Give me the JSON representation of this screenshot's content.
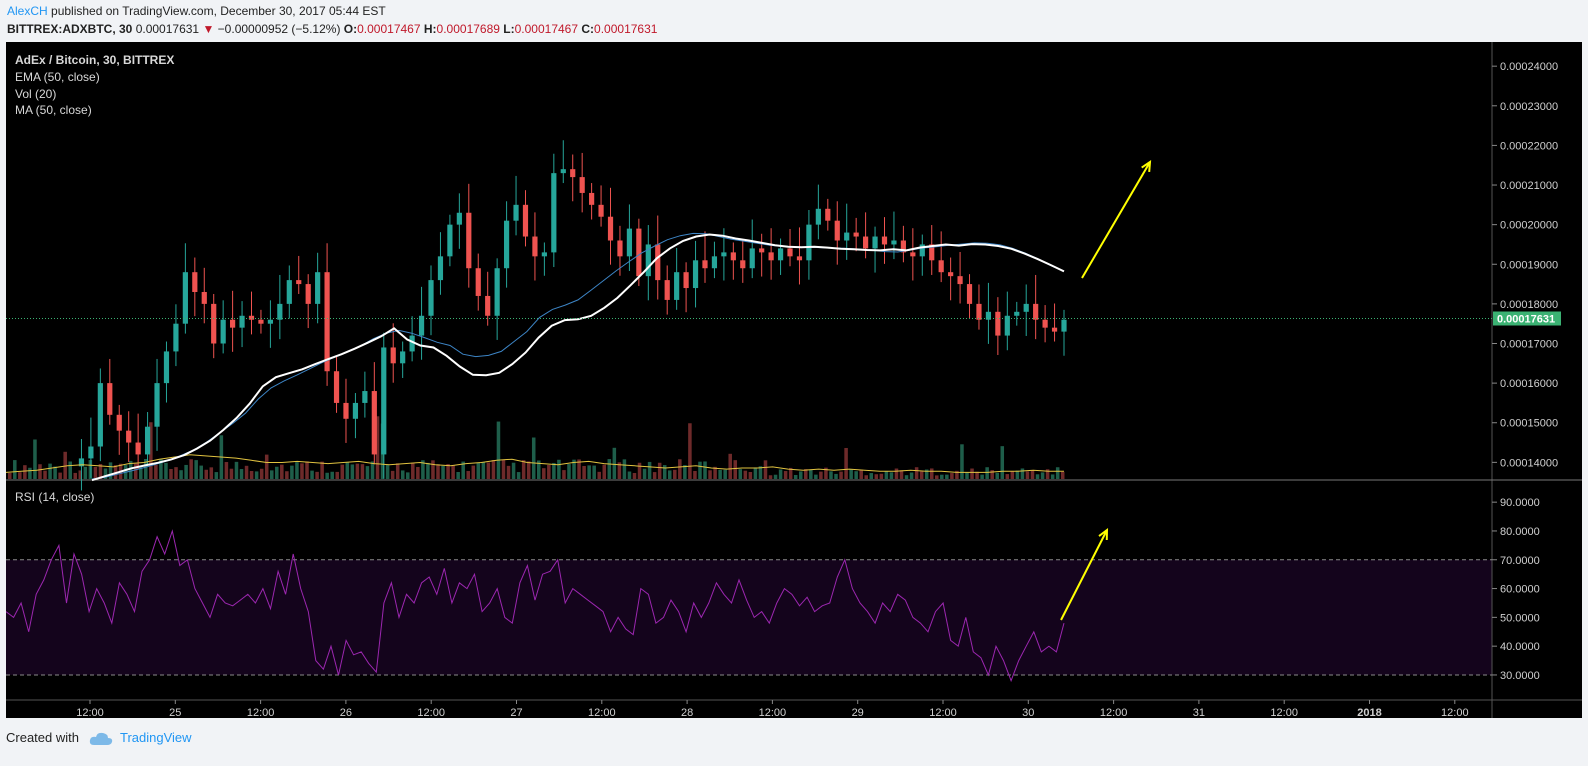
{
  "header": {
    "author": "AlexCH",
    "published": "published on TradingView.com, December 30, 2017 05:44 EST",
    "symbol": "BITTREX:ADXBTC, 30",
    "last": "0.00017631",
    "arrow": "▼",
    "change": "−0.00000952 (−5.12%)",
    "o_label": "O:",
    "o_value": "0.00017467",
    "h_label": "H:",
    "h_value": "0.00017689",
    "l_label": "L:",
    "l_value": "0.00017467",
    "c_label": "C:",
    "c_value": "0.00017631"
  },
  "legend": {
    "title": "AdEx / Bitcoin, 30, BITTREX",
    "ema": "EMA (50, close)",
    "vol": "Vol (20)",
    "ma": "MA (50, close)",
    "rsi": "RSI (14, close)"
  },
  "footer": {
    "created": "Created with",
    "brand": "TradingView"
  },
  "colors": {
    "background": "#000000",
    "up": "#26a69a",
    "down": "#ef5350",
    "ema": "#ffffff",
    "ma": "#3d85c6",
    "vol_ma": "#e1c340",
    "rsi": "#9c27b0",
    "rsi_band": "#14041c",
    "arrow": "#ffff00",
    "last_price_label": "#3bb273"
  },
  "chart_data": {
    "type": "candlestick",
    "price_ticks": [
      "0.00024000",
      "0.00023000",
      "0.00022000",
      "0.00021000",
      "0.00020000",
      "0.00019000",
      "0.00018000",
      "0.00017000",
      "0.00016000",
      "0.00015000",
      "0.00014000"
    ],
    "price_ylim": [
      0.0001358,
      0.0002461
    ],
    "last_price_label": "0.00017631",
    "last_price": 0.00017631,
    "rsi_ticks": [
      "90.0000",
      "80.0000",
      "70.0000",
      "60.0000",
      "50.0000",
      "40.0000",
      "30.0000"
    ],
    "rsi_ylim": [
      22,
      97
    ],
    "rsi_bands": [
      30,
      70
    ],
    "x_ticks": [
      "12:00",
      "25",
      "12:00",
      "26",
      "12:00",
      "27",
      "12:00",
      "28",
      "12:00",
      "29",
      "12:00",
      "30",
      "12:00",
      "31",
      "12:00",
      "2018",
      "12:00"
    ],
    "series": {
      "close": [
        0.000139,
        0.000141,
        0.000144,
        0.00016,
        0.000152,
        0.000148,
        0.000145,
        0.000142,
        0.000149,
        0.00016,
        0.000168,
        0.000175,
        0.000188,
        0.000183,
        0.00018,
        0.00017,
        0.000176,
        0.000174,
        0.000177,
        0.000176,
        0.000175,
        0.000176,
        0.00018,
        0.000186,
        0.000185,
        0.00018,
        0.000188,
        0.000163,
        0.000155,
        0.000151,
        0.000155,
        0.000158,
        0.000142,
        0.000169,
        0.000165,
        0.000168,
        0.000172,
        0.000177,
        0.000186,
        0.000192,
        0.0002,
        0.000203,
        0.000189,
        0.000182,
        0.000177,
        0.000189,
        0.000201,
        0.000205,
        0.000197,
        0.000192,
        0.000193,
        0.000213,
        0.000214,
        0.000212,
        0.000208,
        0.000205,
        0.000202,
        0.000196,
        0.000192,
        0.000199,
        0.000187,
        0.000195,
        0.000186,
        0.000181,
        0.000188,
        0.000184,
        0.000191,
        0.000189,
        0.000192,
        0.000193,
        0.000191,
        0.000189,
        0.000194,
        0.000193,
        0.000191,
        0.000194,
        0.000192,
        0.000191,
        0.0002,
        0.000204,
        0.000201,
        0.000196,
        0.000198,
        0.000197,
        0.000194,
        0.000197,
        0.000195,
        0.000196,
        0.000193,
        0.000192,
        0.000195,
        0.000191,
        0.000188,
        0.000187,
        0.000185,
        0.00018,
        0.000176,
        0.000178,
        0.000172,
        0.000177,
        0.000178,
        0.00018,
        0.000176,
        0.000174,
        0.000173,
        0.000176
      ],
      "ema": [
        0.0001355,
        0.0001365,
        0.0001375,
        0.0001385,
        0.0001392,
        0.0001399,
        0.0001407,
        0.0001418,
        0.0001435,
        0.0001455,
        0.0001482,
        0.0001512,
        0.0001548,
        0.0001592,
        0.0001615,
        0.0001625,
        0.0001635,
        0.0001648,
        0.0001661,
        0.0001673,
        0.0001687,
        0.0001702,
        0.0001718,
        0.0001738,
        0.000171,
        0.0001695,
        0.000169,
        0.0001669,
        0.0001642,
        0.0001621,
        0.000162,
        0.0001626,
        0.0001648,
        0.0001677,
        0.0001715,
        0.0001745,
        0.0001759,
        0.0001761,
        0.000177,
        0.000179,
        0.0001815,
        0.0001847,
        0.000188,
        0.0001915,
        0.000194,
        0.0001959,
        0.000197,
        0.0001975,
        0.0001972,
        0.0001965,
        0.000196,
        0.0001954,
        0.0001948,
        0.0001944,
        0.0001943,
        0.0001944,
        0.0001942,
        0.0001939,
        0.0001938,
        0.0001936,
        0.0001935,
        0.0001938,
        0.0001935,
        0.0001942,
        0.0001946,
        0.000195,
        0.0001947,
        0.0001951,
        0.000195,
        0.0001946,
        0.0001939,
        0.0001927,
        0.0001913,
        0.0001898,
        0.0001882
      ],
      "ma": [
        0.0001358,
        0.0001362,
        0.000137,
        0.0001378,
        0.0001386,
        0.0001395,
        0.0001405,
        0.0001418,
        0.0001432,
        0.0001452,
        0.0001475,
        0.0001498,
        0.0001524,
        0.000156,
        0.0001588,
        0.0001605,
        0.000162,
        0.0001636,
        0.0001652,
        0.0001666,
        0.000168,
        0.0001694,
        0.0001712,
        0.0001726,
        0.0001733,
        0.0001726,
        0.0001715,
        0.0001703,
        0.0001695,
        0.0001673,
        0.0001667,
        0.000167,
        0.000168,
        0.0001705,
        0.000173,
        0.0001766,
        0.0001786,
        0.0001797,
        0.000181,
        0.0001834,
        0.0001859,
        0.0001884,
        0.0001907,
        0.0001929,
        0.0001946,
        0.0001962,
        0.0001972,
        0.0001978,
        0.0001977,
        0.000197,
        0.0001963,
        0.0001958,
        0.0001953,
        0.0001948,
        0.0001945,
        0.0001944,
        0.0001943,
        0.0001942,
        0.0001941,
        0.000194,
        0.0001938,
        0.0001936,
        0.0001932,
        0.0001931,
        0.0001936,
        0.0001941,
        0.0001944,
        0.0001948,
        0.0001951,
        0.0001954,
        0.0001953,
        0.0001949,
        0.000194,
        0.0001928,
        0.0001913,
        0.0001896,
        0.0001883
      ],
      "rsi": [
        52,
        50,
        55,
        45,
        58,
        63,
        70,
        75,
        55,
        72,
        65,
        52,
        60,
        55,
        48,
        62,
        58,
        52,
        66,
        70,
        78,
        72,
        80,
        68,
        70,
        60,
        55,
        50,
        58,
        55,
        54,
        56,
        58,
        55,
        60,
        53,
        66,
        58,
        72,
        60,
        52,
        35,
        32,
        40,
        30,
        42,
        37,
        38,
        34,
        31,
        55,
        62,
        50,
        58,
        55,
        62,
        64,
        58,
        67,
        55,
        62,
        60,
        65,
        52,
        55,
        60,
        50,
        48,
        62,
        68,
        56,
        65,
        66,
        70,
        55,
        60,
        58,
        56,
        54,
        52,
        45,
        50,
        46,
        44,
        60,
        58,
        48,
        50,
        56,
        52,
        45,
        55,
        50,
        55,
        62,
        58,
        55,
        63,
        56,
        50,
        52,
        48,
        55,
        60,
        58,
        54,
        57,
        52,
        54,
        55,
        64,
        70,
        60,
        55,
        52,
        48,
        55,
        52,
        58,
        56,
        50,
        48,
        45,
        52,
        55,
        42,
        40,
        50,
        38,
        36,
        30,
        40,
        35,
        28,
        35,
        40,
        45,
        38,
        40,
        38,
        48
      ],
      "volume_ma": [
        0.06,
        0.07,
        0.08,
        0.1,
        0.12,
        0.13,
        0.12,
        0.11,
        0.14,
        0.15,
        0.18,
        0.2,
        0.22,
        0.21,
        0.2,
        0.19,
        0.17,
        0.15,
        0.15,
        0.16,
        0.15,
        0.14,
        0.15,
        0.16,
        0.14,
        0.13,
        0.14,
        0.15,
        0.13,
        0.12,
        0.14,
        0.15,
        0.17,
        0.18,
        0.15,
        0.14,
        0.13,
        0.15,
        0.16,
        0.14,
        0.13,
        0.12,
        0.11,
        0.1,
        0.11,
        0.12,
        0.1,
        0.09,
        0.1,
        0.1,
        0.11,
        0.09,
        0.08,
        0.09,
        0.08,
        0.09,
        0.08,
        0.07,
        0.07,
        0.08,
        0.07,
        0.07,
        0.06,
        0.06,
        0.06,
        0.07,
        0.07,
        0.08,
        0.07,
        0.07
      ]
    },
    "annotations": [
      "upward yellow arrow on price pane",
      "upward yellow arrow on RSI pane"
    ]
  }
}
